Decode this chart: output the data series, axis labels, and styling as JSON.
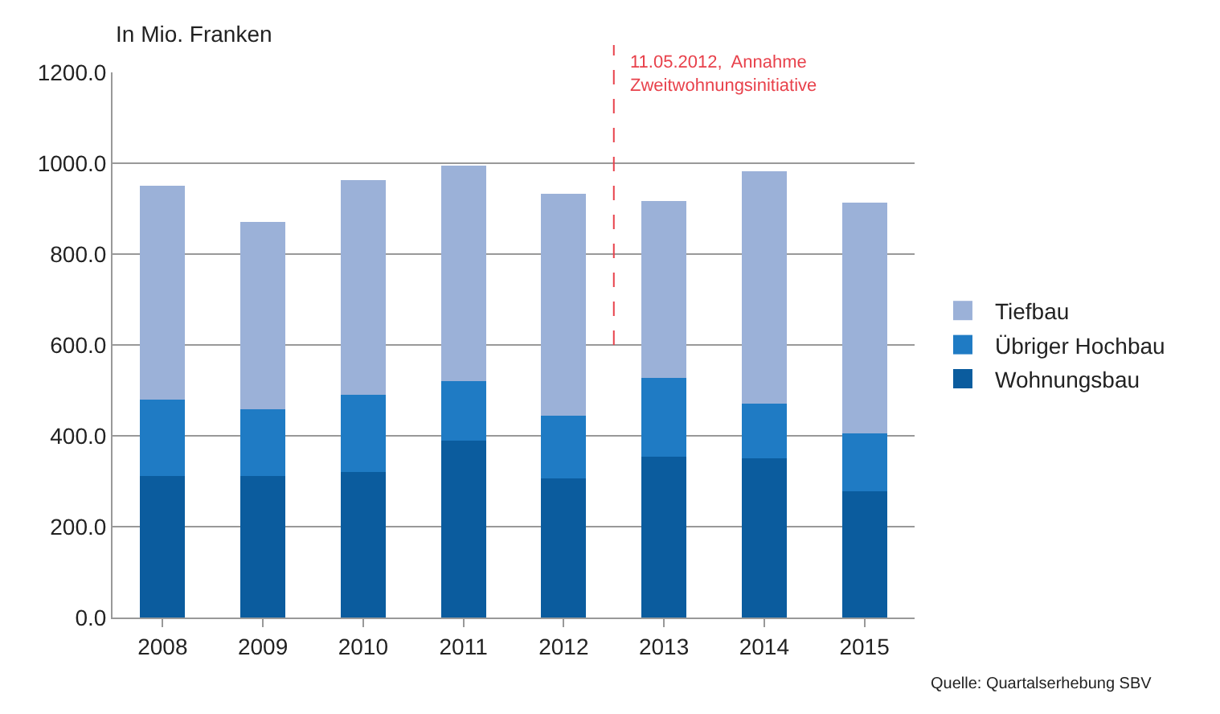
{
  "chart_data": {
    "type": "bar",
    "stacked": true,
    "ylabel": "In Mio. Franken",
    "categories": [
      "2008",
      "2009",
      "2010",
      "2011",
      "2012",
      "2013",
      "2014",
      "2015"
    ],
    "series": [
      {
        "name": "Wohnungsbau",
        "color": "#0b5c9e",
        "values": [
          312,
          312,
          320,
          389,
          306,
          354,
          351,
          278
        ]
      },
      {
        "name": "Übriger Hochbau",
        "color": "#1f7bc4",
        "values": [
          167,
          147,
          171,
          131,
          139,
          173,
          120,
          128
        ]
      },
      {
        "name": "Tiefbau",
        "color": "#9bb1d8",
        "values": [
          471,
          411,
          471,
          474,
          487,
          390,
          512,
          508
        ]
      }
    ],
    "ylim": [
      0,
      1200
    ],
    "yticks": [
      {
        "value": 0,
        "label": "0.0"
      },
      {
        "value": 200,
        "label": "200.0"
      },
      {
        "value": 400,
        "label": "400.0"
      },
      {
        "value": 600,
        "label": "600.0"
      },
      {
        "value": 800,
        "label": "800.0"
      },
      {
        "value": 1000,
        "label": "1000.0"
      },
      {
        "value": 1200,
        "label": "1200.0"
      }
    ],
    "grid": "y",
    "legend": "right",
    "annotations": [
      "11.05.2012,  Annahme\nZweitwohnungsinitiative",
      "Quelle: Quartalserhebung SBV"
    ]
  }
}
